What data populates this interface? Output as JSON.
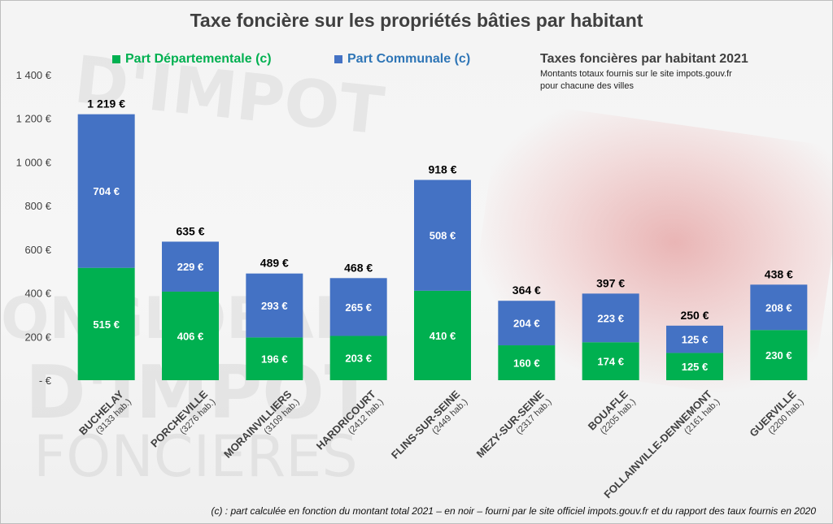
{
  "title": "Taxe foncière sur les propriétés bâties par habitant",
  "legend": [
    {
      "label": "Part Départementale (c)",
      "color": "#00b050"
    },
    {
      "label": "Part Communale (c)",
      "color": "#4472c4"
    }
  ],
  "note": {
    "title": "Taxes foncières par habitant 2021",
    "line1": "Montants totaux fournis sur le site impots.gouv.fr",
    "line2": "pour chacune des villes"
  },
  "footnote": "(c) : part calculée en fonction du montant total 2021 – en noir – fourni par le site officiel impots.gouv.fr et du rapport des taux fournis en 2020",
  "chart_data": {
    "type": "bar",
    "stacked": true,
    "categories": [
      "BUCHELAY",
      "PORCHEVILLE",
      "MORAINVILLIERS",
      "HARDRICOURT",
      "FLINS-SUR-SEINE",
      "MEZY-SUR-SEINE",
      "BOUAFLE",
      "FOLLAINVILLE-DENNEMONT",
      "GUERVILLE"
    ],
    "category_sublabels": [
      "(3133 hab.)",
      "(3276 hab.)",
      "(3109 hab.)",
      "(2412 hab.)",
      "(2449 hab.)",
      "(2317 hab.)",
      "(2205 hab.)",
      "(2161 hab.)",
      "(2200 hab.)"
    ],
    "series": [
      {
        "name": "Part Départementale (c)",
        "color": "#00b050",
        "values": [
          515,
          406,
          196,
          203,
          410,
          160,
          174,
          125,
          230
        ],
        "labels": [
          "515 €",
          "406 €",
          "196 €",
          "203 €",
          "410 €",
          "160 €",
          "174 €",
          "125 €",
          "230 €"
        ]
      },
      {
        "name": "Part Communale (c)",
        "color": "#4472c4",
        "values": [
          704,
          229,
          293,
          265,
          508,
          204,
          223,
          125,
          208
        ],
        "labels": [
          "704 €",
          "229 €",
          "293 €",
          "265 €",
          "508 €",
          "204 €",
          "223 €",
          "125 €",
          "208 €"
        ]
      }
    ],
    "totals": [
      1219,
      635,
      489,
      468,
      918,
      364,
      397,
      250,
      438
    ],
    "total_labels": [
      "1 219 €",
      "635 €",
      "489 €",
      "468 €",
      "918 €",
      "364 €",
      "397 €",
      "250 €",
      "438 €"
    ],
    "ylim": [
      0,
      1400
    ],
    "yticks": [
      0,
      200,
      400,
      600,
      800,
      1000,
      1200,
      1400
    ],
    "ytick_labels": [
      "-   €",
      "200 €",
      "400 €",
      "600 €",
      "800 €",
      "1 000 €",
      "1 200 €",
      "1 400 €"
    ],
    "grid": false,
    "legend_position": "top"
  }
}
